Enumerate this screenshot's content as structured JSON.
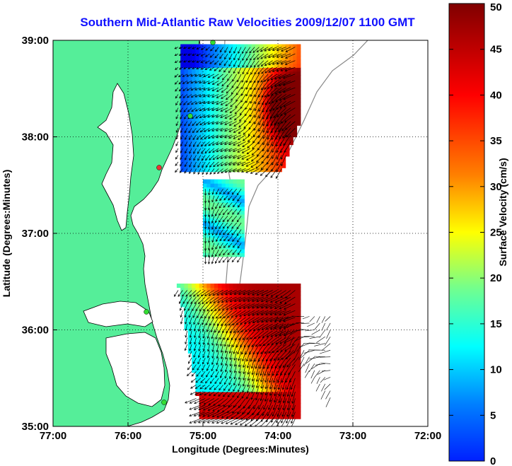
{
  "chart_data": {
    "type": "heatmap",
    "title": "Southern Mid-Atlantic Raw Velocities 2009/12/07 1100 GMT",
    "xlabel": "Longitude (Degrees:Minutes)",
    "ylabel": "Latitude (Degrees:Minutes)",
    "xlim": [
      -77,
      -72
    ],
    "ylim": [
      35,
      39
    ],
    "x_ticks": [
      {
        "value": -77,
        "label": "77:00"
      },
      {
        "value": -76,
        "label": "76:00"
      },
      {
        "value": -75,
        "label": "75:00"
      },
      {
        "value": -74,
        "label": "74:00"
      },
      {
        "value": -73,
        "label": "73:00"
      },
      {
        "value": -72,
        "label": "72:00"
      }
    ],
    "y_ticks": [
      {
        "value": 35,
        "label": "35:00"
      },
      {
        "value": 36,
        "label": "36:00"
      },
      {
        "value": 37,
        "label": "37:00"
      },
      {
        "value": 38,
        "label": "38:00"
      },
      {
        "value": 39,
        "label": "39:00"
      }
    ],
    "grid": true,
    "colorbar": {
      "label": "Surface Velocity (cm/s)",
      "range": [
        0,
        50
      ],
      "ticks": [
        "0",
        "5",
        "10",
        "15",
        "20",
        "25",
        "30",
        "35",
        "40",
        "45",
        "50"
      ]
    },
    "velocity_field": [
      {
        "region": "northern",
        "lon_range": [
          -75.3,
          -73.7
        ],
        "lat_range": [
          37.65,
          38.95
        ],
        "speed_range_cm_s": [
          8,
          50
        ]
      },
      {
        "region": "central strip",
        "lon_range": [
          -75.0,
          -74.5
        ],
        "lat_range": [
          36.7,
          37.5
        ],
        "speed_range_cm_s": [
          12,
          30
        ]
      },
      {
        "region": "southern",
        "lon_range": [
          -75.4,
          -73.7
        ],
        "lat_range": [
          35.05,
          36.45
        ],
        "speed_range_cm_s": [
          15,
          50
        ]
      }
    ]
  },
  "colors": {
    "land": "#55ee99",
    "title": "#1010ff",
    "stations": "#33dd33",
    "station_alert": "#ee3333"
  }
}
